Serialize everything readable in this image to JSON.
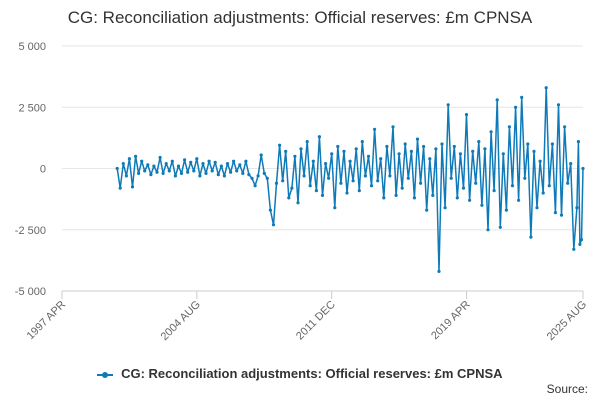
{
  "chart_data": {
    "type": "line",
    "title": "CG: Reconciliation adjustments: Official reserves: £m CPNSA",
    "xlabel": "",
    "ylabel": "",
    "ylim": [
      -5000,
      5000
    ],
    "yticks": [
      {
        "value": 5000,
        "label": "5 000"
      },
      {
        "value": 2500,
        "label": "2 500"
      },
      {
        "value": 0,
        "label": "0"
      },
      {
        "value": -2500,
        "label": "-2 500"
      },
      {
        "value": -5000,
        "label": "-5 000"
      }
    ],
    "xlim": [
      "1997-04",
      "2025-08"
    ],
    "xticks": [
      {
        "value": "1997-04",
        "label": "1997 APR"
      },
      {
        "value": "2004-08",
        "label": "2004 AUG"
      },
      {
        "value": "2011-12",
        "label": "2011 DEC"
      },
      {
        "value": "2019-04",
        "label": "2019 APR"
      },
      {
        "value": "2025-08",
        "label": "2025 AUG"
      }
    ],
    "grid": true,
    "legend_position": "bottom",
    "color": "#0e7ab8",
    "series": [
      {
        "name": "CG: Reconciliation adjustments: Official reserves: £m CPNSA",
        "points": [
          {
            "x": "2000-04",
            "y": 0
          },
          {
            "x": "2000-06",
            "y": -800
          },
          {
            "x": "2000-08",
            "y": 200
          },
          {
            "x": "2000-10",
            "y": -300
          },
          {
            "x": "2000-12",
            "y": 400
          },
          {
            "x": "2001-02",
            "y": -750
          },
          {
            "x": "2001-04",
            "y": 500
          },
          {
            "x": "2001-06",
            "y": -200
          },
          {
            "x": "2001-08",
            "y": 300
          },
          {
            "x": "2001-10",
            "y": -100
          },
          {
            "x": "2001-12",
            "y": 150
          },
          {
            "x": "2002-02",
            "y": -250
          },
          {
            "x": "2002-04",
            "y": 100
          },
          {
            "x": "2002-06",
            "y": -150
          },
          {
            "x": "2002-08",
            "y": 450
          },
          {
            "x": "2002-10",
            "y": -200
          },
          {
            "x": "2002-12",
            "y": 200
          },
          {
            "x": "2003-02",
            "y": -100
          },
          {
            "x": "2003-04",
            "y": 300
          },
          {
            "x": "2003-06",
            "y": -300
          },
          {
            "x": "2003-08",
            "y": 100
          },
          {
            "x": "2003-10",
            "y": -200
          },
          {
            "x": "2003-12",
            "y": 350
          },
          {
            "x": "2004-02",
            "y": -150
          },
          {
            "x": "2004-04",
            "y": 250
          },
          {
            "x": "2004-06",
            "y": -100
          },
          {
            "x": "2004-08",
            "y": 400
          },
          {
            "x": "2004-10",
            "y": -300
          },
          {
            "x": "2004-12",
            "y": 200
          },
          {
            "x": "2005-02",
            "y": -200
          },
          {
            "x": "2005-04",
            "y": 300
          },
          {
            "x": "2005-06",
            "y": -100
          },
          {
            "x": "2005-08",
            "y": 250
          },
          {
            "x": "2005-10",
            "y": -250
          },
          {
            "x": "2005-12",
            "y": 100
          },
          {
            "x": "2006-02",
            "y": -300
          },
          {
            "x": "2006-04",
            "y": 200
          },
          {
            "x": "2006-06",
            "y": -150
          },
          {
            "x": "2006-08",
            "y": 300
          },
          {
            "x": "2006-10",
            "y": -100
          },
          {
            "x": "2006-12",
            "y": 150
          },
          {
            "x": "2007-02",
            "y": -200
          },
          {
            "x": "2007-04",
            "y": 300
          },
          {
            "x": "2007-06",
            "y": -250
          },
          {
            "x": "2007-08",
            "y": -400
          },
          {
            "x": "2007-10",
            "y": -700
          },
          {
            "x": "2007-12",
            "y": -300
          },
          {
            "x": "2008-02",
            "y": 550
          },
          {
            "x": "2008-04",
            "y": -200
          },
          {
            "x": "2008-06",
            "y": -400
          },
          {
            "x": "2008-08",
            "y": -1700
          },
          {
            "x": "2008-10",
            "y": -2300
          },
          {
            "x": "2008-12",
            "y": -600
          },
          {
            "x": "2009-02",
            "y": 950
          },
          {
            "x": "2009-04",
            "y": -500
          },
          {
            "x": "2009-06",
            "y": 700
          },
          {
            "x": "2009-08",
            "y": -1200
          },
          {
            "x": "2009-10",
            "y": -800
          },
          {
            "x": "2009-12",
            "y": 500
          },
          {
            "x": "2010-02",
            "y": -1400
          },
          {
            "x": "2010-04",
            "y": 800
          },
          {
            "x": "2010-06",
            "y": -300
          },
          {
            "x": "2010-08",
            "y": 1100
          },
          {
            "x": "2010-10",
            "y": -700
          },
          {
            "x": "2010-12",
            "y": 300
          },
          {
            "x": "2011-02",
            "y": -900
          },
          {
            "x": "2011-04",
            "y": 1300
          },
          {
            "x": "2011-06",
            "y": -1100
          },
          {
            "x": "2011-08",
            "y": 200
          },
          {
            "x": "2011-10",
            "y": -400
          },
          {
            "x": "2011-12",
            "y": 600
          },
          {
            "x": "2012-02",
            "y": -1600
          },
          {
            "x": "2012-04",
            "y": 900
          },
          {
            "x": "2012-06",
            "y": -600
          },
          {
            "x": "2012-08",
            "y": 700
          },
          {
            "x": "2012-10",
            "y": -1000
          },
          {
            "x": "2012-12",
            "y": 300
          },
          {
            "x": "2013-02",
            "y": -500
          },
          {
            "x": "2013-04",
            "y": 800
          },
          {
            "x": "2013-06",
            "y": -900
          },
          {
            "x": "2013-08",
            "y": 1100
          },
          {
            "x": "2013-10",
            "y": -300
          },
          {
            "x": "2013-12",
            "y": 500
          },
          {
            "x": "2014-02",
            "y": -700
          },
          {
            "x": "2014-04",
            "y": 1600
          },
          {
            "x": "2014-06",
            "y": -500
          },
          {
            "x": "2014-08",
            "y": 400
          },
          {
            "x": "2014-10",
            "y": -1200
          },
          {
            "x": "2014-12",
            "y": 900
          },
          {
            "x": "2015-02",
            "y": -300
          },
          {
            "x": "2015-04",
            "y": 1700
          },
          {
            "x": "2015-06",
            "y": -1100
          },
          {
            "x": "2015-08",
            "y": 600
          },
          {
            "x": "2015-10",
            "y": -800
          },
          {
            "x": "2015-12",
            "y": 1000
          },
          {
            "x": "2016-02",
            "y": -400
          },
          {
            "x": "2016-04",
            "y": 700
          },
          {
            "x": "2016-06",
            "y": -1200
          },
          {
            "x": "2016-08",
            "y": 1200
          },
          {
            "x": "2016-10",
            "y": -600
          },
          {
            "x": "2016-12",
            "y": 900
          },
          {
            "x": "2017-02",
            "y": -1700
          },
          {
            "x": "2017-04",
            "y": 400
          },
          {
            "x": "2017-06",
            "y": -1100
          },
          {
            "x": "2017-08",
            "y": 800
          },
          {
            "x": "2017-10",
            "y": -4200
          },
          {
            "x": "2017-12",
            "y": 1000
          },
          {
            "x": "2018-02",
            "y": -1600
          },
          {
            "x": "2018-04",
            "y": 2600
          },
          {
            "x": "2018-06",
            "y": -400
          },
          {
            "x": "2018-08",
            "y": 900
          },
          {
            "x": "2018-10",
            "y": -1200
          },
          {
            "x": "2018-12",
            "y": 600
          },
          {
            "x": "2019-02",
            "y": -800
          },
          {
            "x": "2019-04",
            "y": 2200
          },
          {
            "x": "2019-06",
            "y": -1300
          },
          {
            "x": "2019-08",
            "y": 700
          },
          {
            "x": "2019-10",
            "y": -600
          },
          {
            "x": "2019-12",
            "y": 1100
          },
          {
            "x": "2020-02",
            "y": -1500
          },
          {
            "x": "2020-04",
            "y": 800
          },
          {
            "x": "2020-06",
            "y": -2500
          },
          {
            "x": "2020-08",
            "y": 1500
          },
          {
            "x": "2020-10",
            "y": -900
          },
          {
            "x": "2020-12",
            "y": 2800
          },
          {
            "x": "2021-02",
            "y": -2400
          },
          {
            "x": "2021-04",
            "y": 600
          },
          {
            "x": "2021-06",
            "y": -1700
          },
          {
            "x": "2021-08",
            "y": 1700
          },
          {
            "x": "2021-10",
            "y": -700
          },
          {
            "x": "2021-12",
            "y": 2500
          },
          {
            "x": "2022-02",
            "y": -1300
          },
          {
            "x": "2022-04",
            "y": 2900
          },
          {
            "x": "2022-06",
            "y": -400
          },
          {
            "x": "2022-08",
            "y": 1000
          },
          {
            "x": "2022-10",
            "y": -2800
          },
          {
            "x": "2022-12",
            "y": 700
          },
          {
            "x": "2023-02",
            "y": -1600
          },
          {
            "x": "2023-04",
            "y": 300
          },
          {
            "x": "2023-06",
            "y": -1000
          },
          {
            "x": "2023-08",
            "y": 3300
          },
          {
            "x": "2023-10",
            "y": -700
          },
          {
            "x": "2023-12",
            "y": 1000
          },
          {
            "x": "2024-02",
            "y": -1800
          },
          {
            "x": "2024-04",
            "y": 2600
          },
          {
            "x": "2024-06",
            "y": -1900
          },
          {
            "x": "2024-08",
            "y": 1700
          },
          {
            "x": "2024-10",
            "y": -600
          },
          {
            "x": "2024-12",
            "y": 200
          },
          {
            "x": "2025-02",
            "y": -3300
          },
          {
            "x": "2025-04",
            "y": -1600
          },
          {
            "x": "2025-05",
            "y": 1100
          },
          {
            "x": "2025-06",
            "y": -3100
          },
          {
            "x": "2025-07",
            "y": -2900
          },
          {
            "x": "2025-08",
            "y": 0
          }
        ]
      }
    ]
  },
  "source_label": "Source:"
}
